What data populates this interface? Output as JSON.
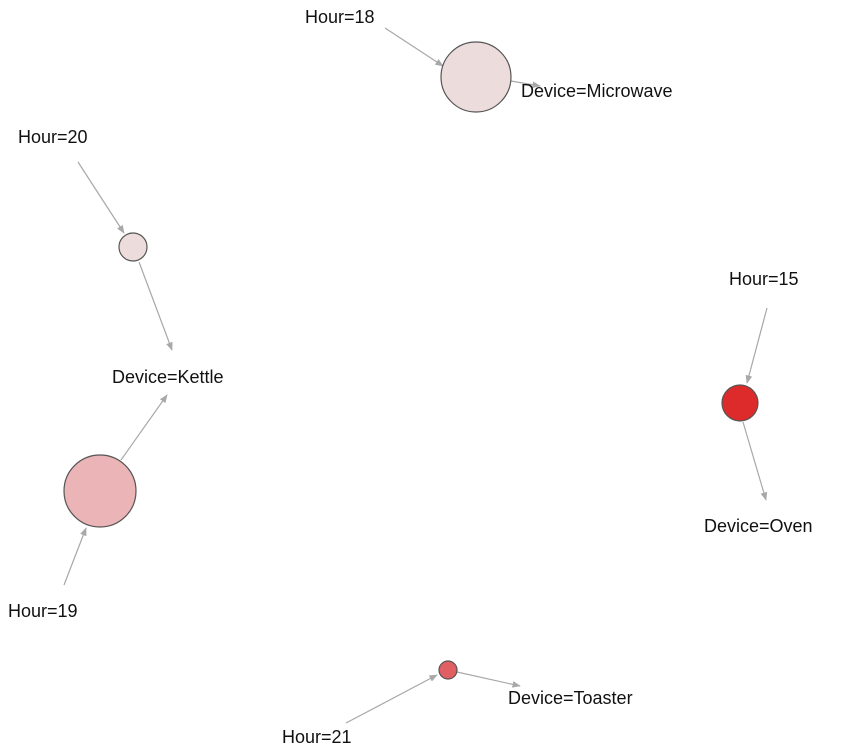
{
  "nodes": [
    {
      "label": "Hour=18"
    },
    {
      "label": "Device=Microwave"
    },
    {
      "label": "Hour=20"
    },
    {
      "label": "Device=Kettle"
    },
    {
      "label": "Hour=15"
    },
    {
      "label": "Device=Oven"
    },
    {
      "label": "Hour=19"
    },
    {
      "label": "Device=Toaster"
    },
    {
      "label": "Hour=21"
    }
  ]
}
